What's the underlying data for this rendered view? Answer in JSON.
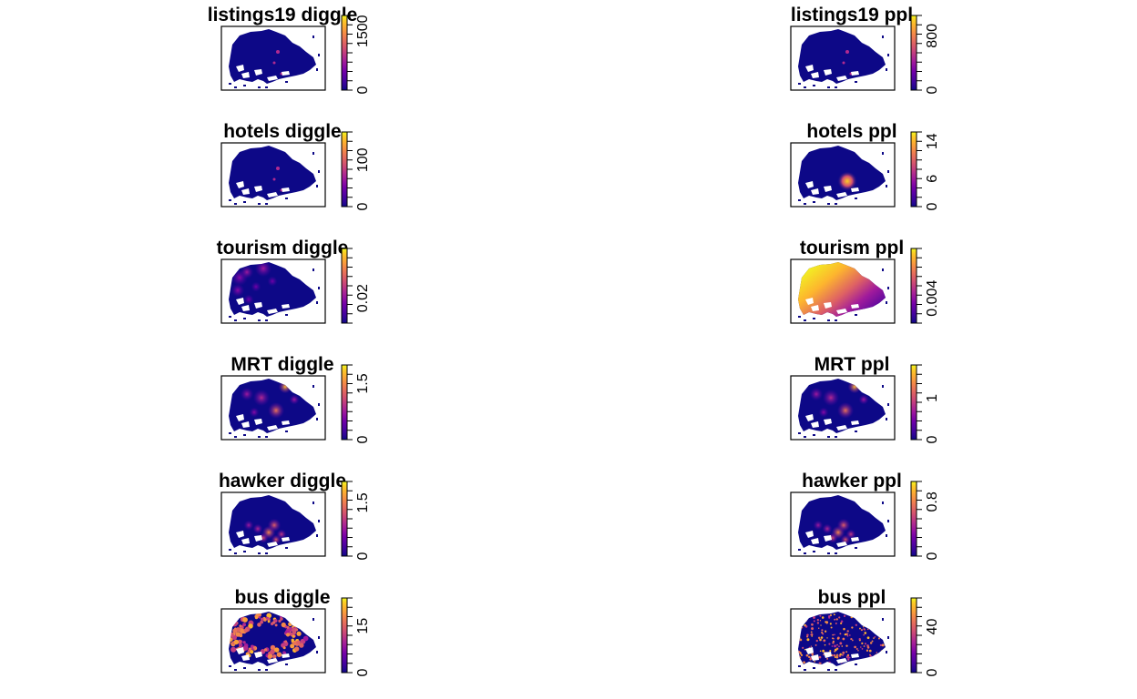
{
  "palette": [
    "#0d0887",
    "#2e0595",
    "#46039f",
    "#5c01a6",
    "#7201a8",
    "#8b0aa5",
    "#a01a9c",
    "#b12a90",
    "#c33d80",
    "#d24f71",
    "#de6164",
    "#ea7457",
    "#f48849",
    "#fa9e3b",
    "#fdb52e",
    "#fccd25",
    "#f0f921"
  ],
  "background_color": "#0d0887",
  "panels": [
    {
      "title": "listings19 diggle",
      "ticks": [
        "0",
        "1500"
      ],
      "tick_values": [
        0,
        1500
      ],
      "max": 1900,
      "pattern": "sparse"
    },
    {
      "title": "listings19 ppl",
      "ticks": [
        "0",
        "800"
      ],
      "tick_values": [
        0,
        800
      ],
      "max": 1100,
      "pattern": "sparse"
    },
    {
      "title": "hotels diggle",
      "ticks": [
        "0",
        "100"
      ],
      "tick_values": [
        0,
        100
      ],
      "max": 160,
      "pattern": "sparse"
    },
    {
      "title": "hotels ppl",
      "ticks": [
        "0",
        "6",
        "14"
      ],
      "tick_values": [
        0,
        6,
        14
      ],
      "max": 16,
      "pattern": "single_hotspot"
    },
    {
      "title": "tourism diggle",
      "ticks": [
        "0.02"
      ],
      "tick_values": [
        0.02
      ],
      "max": 0.06,
      "pattern": "scattered_blobs"
    },
    {
      "title": "tourism ppl",
      "ticks": [
        "0.004"
      ],
      "tick_values": [
        0.004
      ],
      "max": 0.012,
      "pattern": "gradient"
    },
    {
      "title": "MRT diggle",
      "ticks": [
        "0",
        "1.5"
      ],
      "tick_values": [
        0,
        1.5
      ],
      "max": 2.0,
      "pattern": "hotspots"
    },
    {
      "title": "MRT ppl",
      "ticks": [
        "0",
        "1"
      ],
      "tick_values": [
        0,
        1
      ],
      "max": 1.8,
      "pattern": "hotspots"
    },
    {
      "title": "hawker diggle",
      "ticks": [
        "0",
        "1.5"
      ],
      "tick_values": [
        0,
        1.5
      ],
      "max": 2.1,
      "pattern": "clustered"
    },
    {
      "title": "hawker ppl",
      "ticks": [
        "0",
        "0.8"
      ],
      "tick_values": [
        0,
        0.8
      ],
      "max": 1.1,
      "pattern": "clustered"
    },
    {
      "title": "bus diggle",
      "ticks": [
        "0",
        "15"
      ],
      "tick_values": [
        0,
        15
      ],
      "max": 24,
      "pattern": "ring"
    },
    {
      "title": "bus ppl",
      "ticks": [
        "0",
        "40"
      ],
      "tick_values": [
        0,
        40
      ],
      "max": 65,
      "pattern": "speckled"
    }
  ]
}
